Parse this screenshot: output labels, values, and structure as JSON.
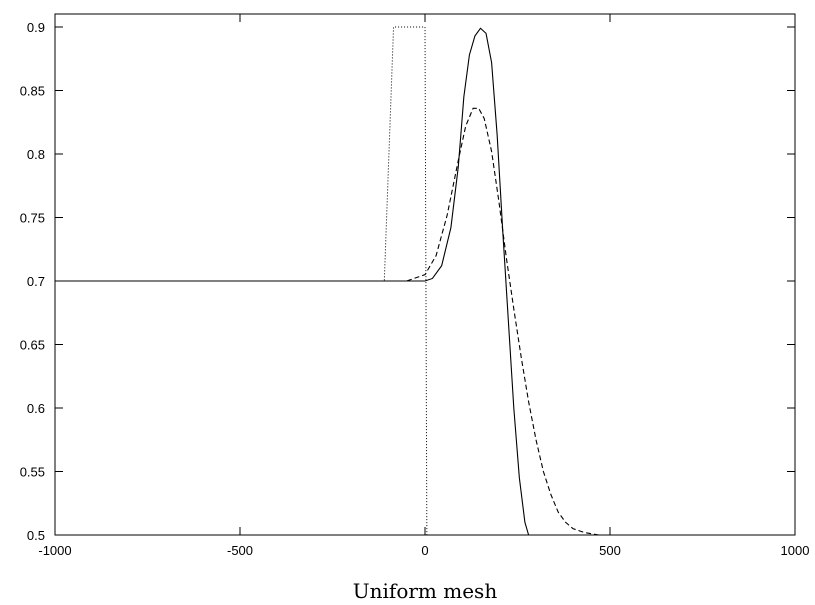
{
  "chart_data": {
    "type": "line",
    "title": "",
    "xlabel": "Uniform mesh",
    "ylabel": "",
    "xlim": [
      -1000,
      1000
    ],
    "ylim": [
      0.5,
      0.9
    ],
    "xticks": [
      -1000,
      -500,
      0,
      500,
      1000
    ],
    "yticks": [
      0.5,
      0.55,
      0.6,
      0.65,
      0.7,
      0.75,
      0.8,
      0.85,
      0.9
    ],
    "xtick_labels": [
      "-1000",
      "-500",
      "0",
      "500",
      "1000"
    ],
    "ytick_labels": [
      "0.5",
      "0.55",
      "0.6",
      "0.65",
      "0.7",
      "0.75",
      "0.8",
      "0.85",
      "0.9"
    ],
    "grid": false,
    "legend": false,
    "series": [
      {
        "style": "dotted",
        "x": [
          -1000,
          -110,
          -85,
          0,
          5,
          1000
        ],
        "y": [
          0.7,
          0.7,
          0.9,
          0.9,
          0.5,
          0.5
        ]
      },
      {
        "style": "solid",
        "x": [
          -1000,
          0,
          20,
          45,
          70,
          90,
          105,
          120,
          135,
          150,
          165,
          180,
          195,
          210,
          225,
          240,
          255,
          270,
          280,
          1000
        ],
        "y": [
          0.7,
          0.7,
          0.702,
          0.712,
          0.742,
          0.79,
          0.845,
          0.878,
          0.893,
          0.899,
          0.895,
          0.872,
          0.815,
          0.74,
          0.67,
          0.6,
          0.545,
          0.51,
          0.5,
          0.5
        ]
      },
      {
        "style": "dashed",
        "x": [
          -1000,
          -50,
          0,
          30,
          60,
          90,
          110,
          130,
          145,
          160,
          180,
          200,
          220,
          240,
          260,
          280,
          300,
          320,
          340,
          360,
          380,
          400,
          430,
          470,
          520,
          1000
        ],
        "y": [
          0.7,
          0.7,
          0.705,
          0.72,
          0.752,
          0.795,
          0.822,
          0.836,
          0.836,
          0.828,
          0.802,
          0.762,
          0.718,
          0.678,
          0.64,
          0.605,
          0.575,
          0.55,
          0.532,
          0.518,
          0.51,
          0.505,
          0.502,
          0.5,
          0.5,
          0.5
        ]
      }
    ]
  }
}
